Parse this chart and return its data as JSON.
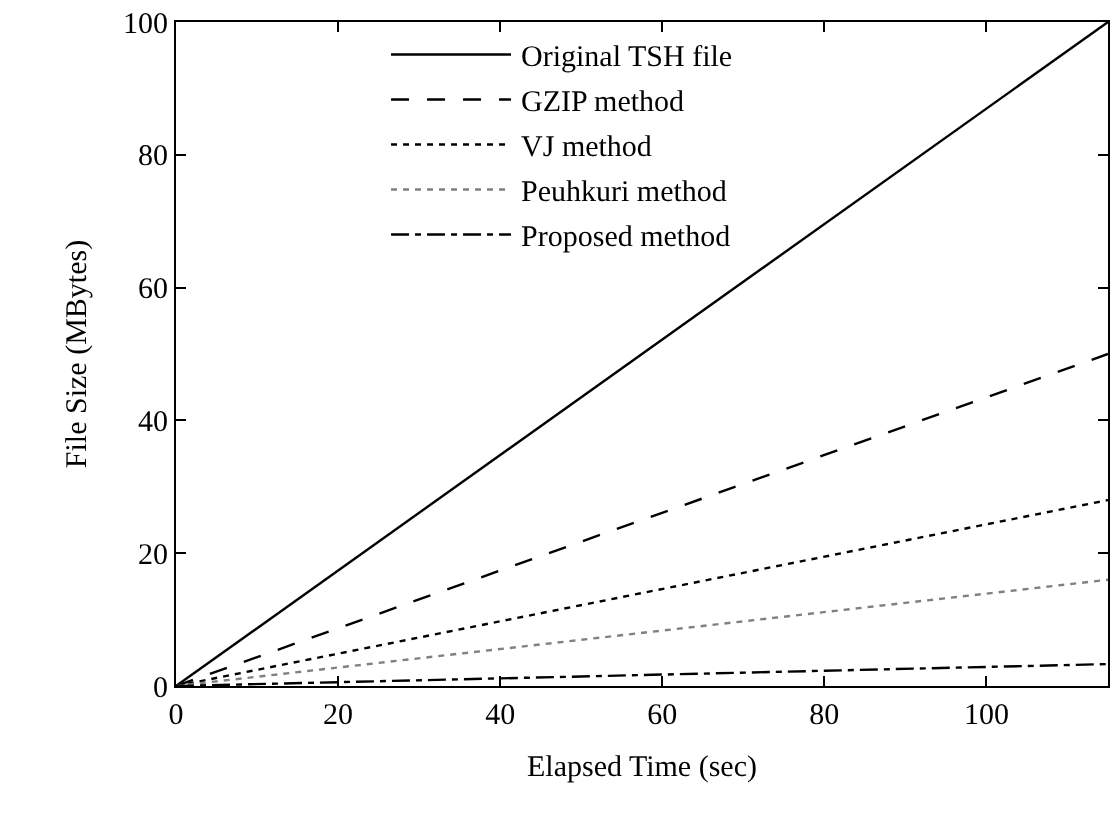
{
  "chart_data": {
    "type": "line",
    "xlabel": "Elapsed Time (sec)",
    "ylabel": "File Size (MBytes)",
    "xlim": [
      0,
      115
    ],
    "xticks": [
      0,
      20,
      40,
      60,
      80,
      100
    ],
    "ylim": [
      0,
      100
    ],
    "yticks": [
      0,
      20,
      40,
      60,
      80,
      100
    ],
    "x": [
      0,
      115
    ],
    "legend": "top left",
    "marker": "none",
    "series": [
      {
        "name": "Original TSH file",
        "color": "#000000",
        "values": [
          0,
          100
        ],
        "line_style": "solid"
      },
      {
        "name": "GZIP method",
        "color": "#000000",
        "values": [
          0,
          50
        ],
        "line_style": "dashed"
      },
      {
        "name": "VJ method",
        "color": "#000000",
        "values": [
          0,
          28
        ],
        "line_style": "dotted"
      },
      {
        "name": "Peuhkuri method",
        "color": "#808080",
        "values": [
          0,
          16
        ],
        "line_style": "dotted"
      },
      {
        "name": "Proposed method",
        "color": "#000000",
        "values": [
          0,
          3.3
        ],
        "line_style": "dashdot"
      }
    ]
  }
}
